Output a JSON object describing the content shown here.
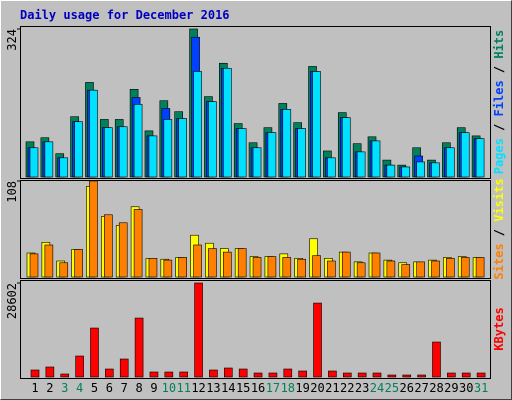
{
  "chart_data": [
    {
      "type": "bar",
      "title": "Daily usage for December 2016",
      "ylim": [
        0,
        324
      ],
      "yticks": [
        324
      ],
      "series": [
        {
          "name": "Hits",
          "color": "#00805c",
          "values": [
            77,
            86,
            51,
            132,
            207,
            126,
            126,
            192,
            101,
            167,
            143,
            324,
            176,
            249,
            117,
            75,
            108,
            161,
            119,
            242,
            57,
            141,
            73,
            88,
            37,
            26,
            64,
            37,
            75,
            108,
            90
          ]
        },
        {
          "name": "Files",
          "color": "#0040ff",
          "values": [
            64,
            77,
            42,
            121,
            190,
            108,
            110,
            174,
            90,
            150,
            128,
            306,
            165,
            238,
            106,
            64,
            97,
            148,
            106,
            231,
            42,
            130,
            55,
            79,
            26,
            22,
            46,
            31,
            64,
            97,
            84
          ]
        },
        {
          "name": "Pages",
          "color": "#00e0ff",
          "values": [
            64,
            77,
            42,
            121,
            190,
            108,
            110,
            159,
            90,
            126,
            128,
            231,
            165,
            238,
            106,
            64,
            97,
            148,
            106,
            231,
            42,
            130,
            55,
            79,
            26,
            22,
            33,
            31,
            64,
            97,
            84
          ]
        }
      ]
    },
    {
      "type": "bar",
      "ylim": [
        0,
        108
      ],
      "yticks": [
        108
      ],
      "series": [
        {
          "name": "Visits",
          "color": "#ffff00",
          "values": [
            27,
            39,
            18,
            31,
            102,
            68,
            58,
            79,
            21,
            20,
            22,
            47,
            38,
            32,
            32,
            23,
            23,
            26,
            21,
            43,
            21,
            28,
            17,
            27,
            19,
            16,
            17,
            19,
            22,
            23,
            22
          ]
        },
        {
          "name": "Sites",
          "color": "#ff8000",
          "values": [
            26,
            36,
            16,
            31,
            108,
            70,
            61,
            76,
            21,
            19,
            22,
            36,
            32,
            28,
            32,
            22,
            23,
            22,
            20,
            24,
            18,
            28,
            16,
            27,
            18,
            14,
            17,
            18,
            21,
            22,
            22
          ]
        }
      ]
    },
    {
      "type": "bar",
      "ylim": [
        0,
        28602
      ],
      "yticks": [
        28602
      ],
      "categories": [
        "1",
        "2",
        "3",
        "4",
        "5",
        "6",
        "7",
        "8",
        "9",
        "10",
        "11",
        "12",
        "13",
        "14",
        "15",
        "16",
        "17",
        "18",
        "19",
        "20",
        "21",
        "22",
        "23",
        "24",
        "25",
        "26",
        "27",
        "28",
        "29",
        "30",
        "31"
      ],
      "category_colors": [
        "#000000",
        "#000000",
        "#00805c",
        "#00805c",
        "#000000",
        "#000000",
        "#000000",
        "#000000",
        "#000000",
        "#00805c",
        "#00805c",
        "#000000",
        "#000000",
        "#000000",
        "#000000",
        "#000000",
        "#00805c",
        "#00805c",
        "#000000",
        "#000000",
        "#000000",
        "#000000",
        "#000000",
        "#00805c",
        "#00805c",
        "#000000",
        "#000000",
        "#000000",
        "#000000",
        "#000000",
        "#00805c"
      ],
      "series": [
        {
          "name": "KBytes",
          "color": "#ff0000",
          "values": [
            2128,
            3040,
            912,
            6384,
            14896,
            2432,
            5472,
            17936,
            1520,
            1520,
            1520,
            28602,
            2128,
            2736,
            2432,
            1216,
            1216,
            2432,
            1824,
            22496,
            1824,
            1216,
            1216,
            1216,
            608,
            608,
            608,
            10640,
            1216,
            1216,
            1216
          ]
        }
      ]
    }
  ]
}
